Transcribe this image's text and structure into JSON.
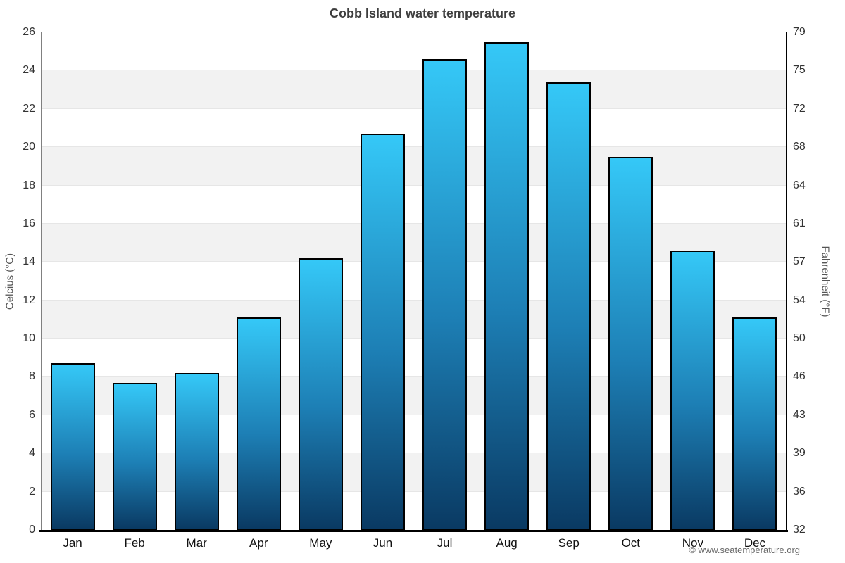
{
  "chart_data": {
    "type": "bar",
    "title": "Cobb Island water temperature",
    "categories": [
      "Jan",
      "Feb",
      "Mar",
      "Apr",
      "May",
      "Jun",
      "Jul",
      "Aug",
      "Sep",
      "Oct",
      "Nov",
      "Dec"
    ],
    "values": [
      8.7,
      7.7,
      8.2,
      11.1,
      14.2,
      20.7,
      24.6,
      25.5,
      23.4,
      19.5,
      14.6,
      11.1
    ],
    "ylabel": "Celcius (°C)",
    "ylabel_secondary": "Fahrenheit (°F)",
    "xlabel": "",
    "ylim": [
      0,
      26
    ],
    "ylim_secondary": [
      32,
      79
    ],
    "ytick_interval": 2,
    "yticks_celsius": [
      0,
      2,
      4,
      6,
      8,
      10,
      12,
      14,
      16,
      18,
      20,
      22,
      24,
      26
    ],
    "yticks_fahrenheit": [
      32,
      36,
      39,
      43,
      46,
      50,
      54,
      57,
      61,
      64,
      68,
      72,
      75,
      79
    ],
    "grid": "alternating horizontal bands every 2°C, light gray on odd bands",
    "legend": "none",
    "colors": {
      "bar_gradient_top": "#35c8f7",
      "bar_gradient_bottom": "#0a3a63",
      "bar_border": "#000000",
      "band_gray": "#f2f2f2",
      "gridline": "#e6e6e6",
      "title_text": "#3e3e3e",
      "tick_text": "#333333",
      "axis_title_text": "#555555",
      "footer_text": "#666666"
    }
  },
  "attribution": "© www.seatemperature.org"
}
